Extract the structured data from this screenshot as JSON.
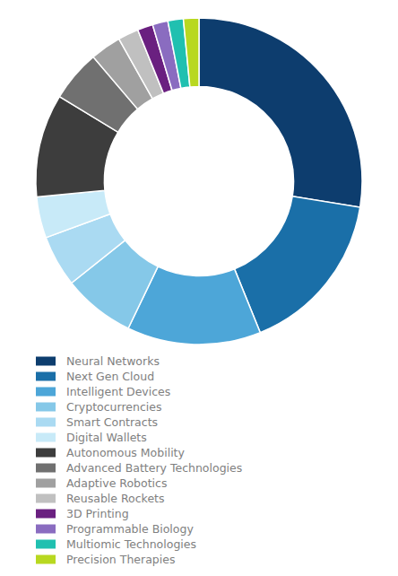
{
  "chart_data": {
    "type": "donut",
    "categories": [
      "Neural Networks",
      "Next Gen Cloud",
      "Intelligent Devices",
      "Cryptocurrencies",
      "Smart Contracts",
      "Digital Wallets",
      "Autonomous Mobility",
      "Advanced Battery Technologies",
      "Adaptive Robotics",
      "Reusable Rockets",
      "3D Printing",
      "Programmable Biology",
      "Multiomic Technologies",
      "Precision Therapies"
    ],
    "values": [
      27,
      16,
      13,
      7,
      5,
      4,
      10,
      5,
      3,
      2,
      1.5,
      1.5,
      1.5,
      1.5
    ],
    "colors": [
      "#0d3d6e",
      "#1a6fa8",
      "#4da6d8",
      "#85c8e8",
      "#aadaf2",
      "#c8eaf8",
      "#3d3d3d",
      "#707070",
      "#a0a0a0",
      "#c0c0c0",
      "#6a2080",
      "#8a6cc0",
      "#20c0b0",
      "#b8d820"
    ],
    "legend": "bottom"
  }
}
